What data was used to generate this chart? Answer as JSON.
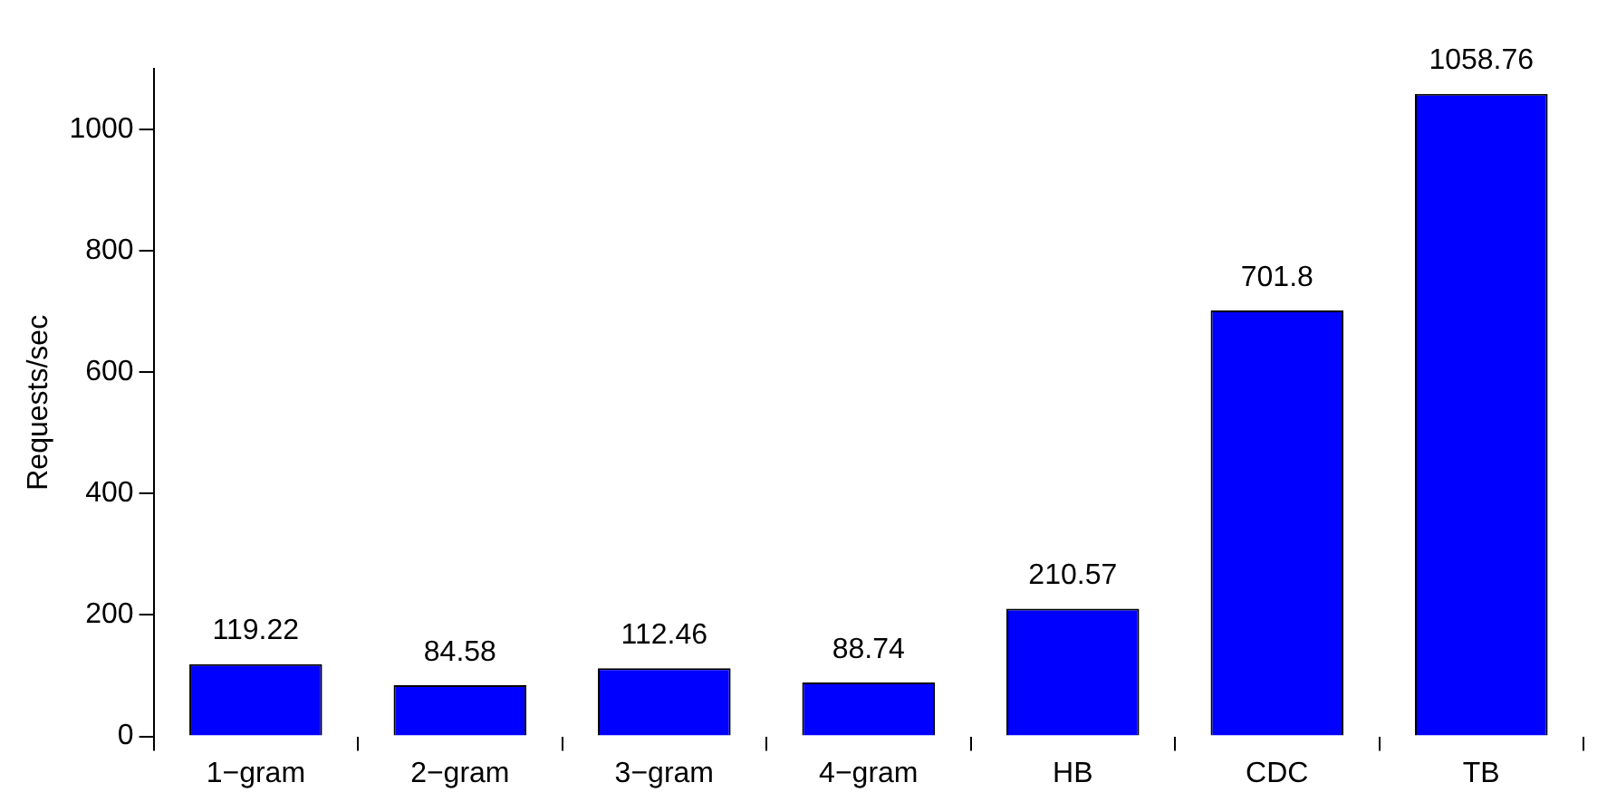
{
  "chart_data": {
    "type": "bar",
    "ylabel": "Requests/sec",
    "categories": [
      "1−gram",
      "2−gram",
      "3−gram",
      "4−gram",
      "HB",
      "CDC",
      "TB"
    ],
    "values": [
      119.22,
      84.58,
      112.46,
      88.74,
      210.57,
      701.8,
      1058.76
    ],
    "value_labels": [
      "119.22",
      "84.58",
      "112.46",
      "88.74",
      "210.57",
      "701.8",
      "1058.76"
    ],
    "color": "#0000ff",
    "ylim": [
      0,
      1100
    ],
    "yticks": [
      0,
      200,
      400,
      600,
      800,
      1000
    ],
    "grid": false,
    "legend": false
  }
}
